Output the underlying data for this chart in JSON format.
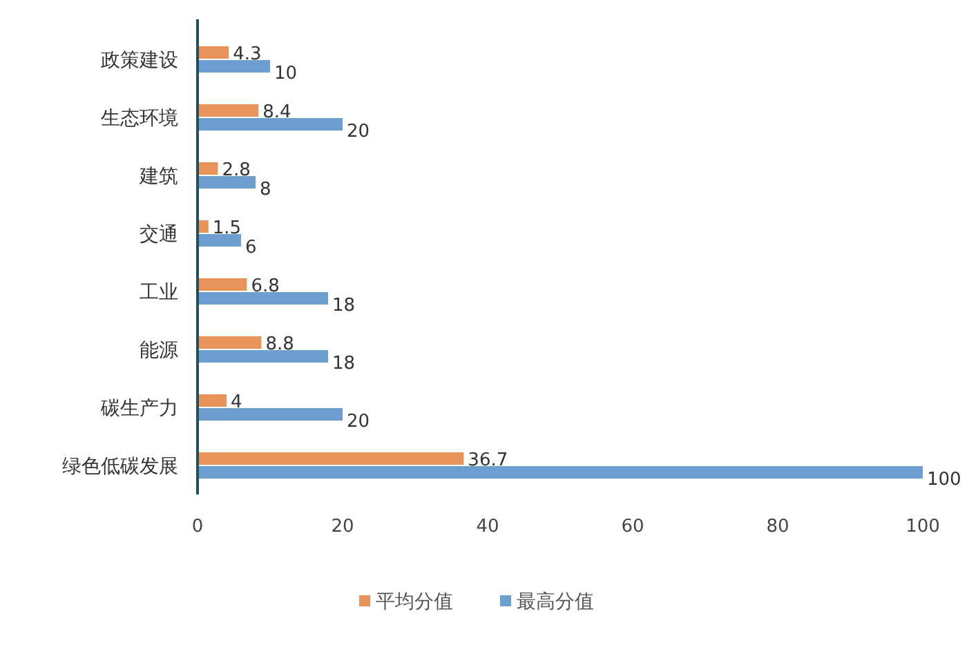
{
  "chart_data": {
    "type": "bar",
    "orientation": "horizontal",
    "categories": [
      "政策建设",
      "生态环境",
      "建筑",
      "交通",
      "工业",
      "能源",
      "碳生产力",
      "绿色低碳发展"
    ],
    "series": [
      {
        "name": "平均分值",
        "color": "#e8935a",
        "values": [
          4.3,
          8.4,
          2.8,
          1.5,
          6.8,
          8.8,
          4,
          36.7
        ]
      },
      {
        "name": "最高分值",
        "color": "#6c9fcf",
        "values": [
          10,
          20,
          8,
          6,
          18,
          18,
          20,
          100
        ]
      }
    ],
    "xlim": [
      0,
      100
    ],
    "xticks": [
      0,
      20,
      40,
      60,
      80,
      100
    ],
    "grid": false,
    "legend": "bottom",
    "data_labels": true
  }
}
